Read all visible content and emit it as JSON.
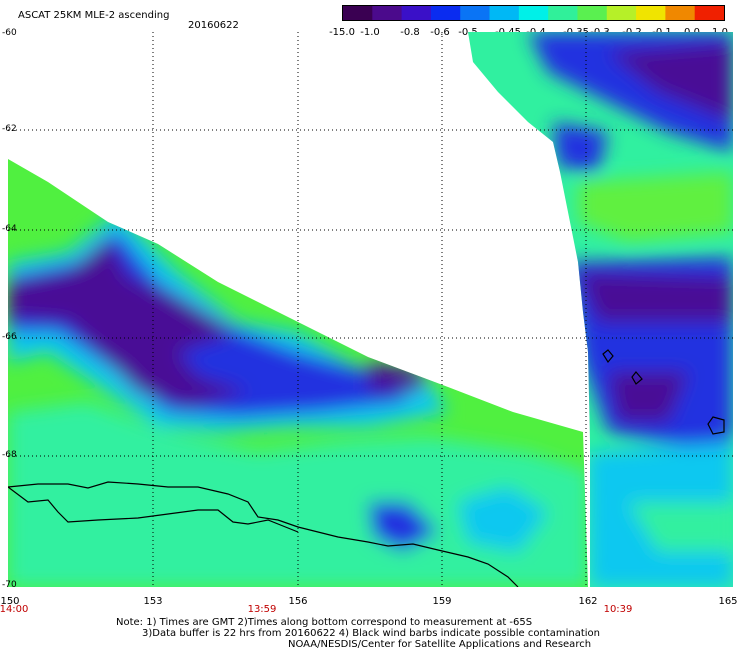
{
  "header": {
    "title": "ASCAT 25KM MLE-2 ascending",
    "date": "20160622"
  },
  "colorbar": {
    "labels": [
      "-15.0",
      "-1.0",
      "-0.8",
      "-0.6",
      "-0.5",
      "-0.45",
      "-0.4",
      "-0.35",
      "-0.3",
      "-0.2",
      "-0.1",
      "0.0",
      "1.0"
    ],
    "colors": [
      "#3a0052",
      "#4b0a8c",
      "#3a10c8",
      "#0a2cf0",
      "#0a74f5",
      "#00b8f5",
      "#00f0e8",
      "#30f09a",
      "#5af050",
      "#b6f028",
      "#f0e400",
      "#f08800",
      "#f02000"
    ]
  },
  "axes": {
    "y_labels": [
      "-60",
      "-62",
      "-64",
      "-66",
      "-68",
      "-70"
    ],
    "x_labels": [
      "150",
      "153",
      "156",
      "159",
      "162",
      "165"
    ]
  },
  "time_labels": [
    "14:00",
    "13:59",
    "10:39"
  ],
  "footer": {
    "note_line1": "Note: 1) Times are GMT 2)Times along bottom correspond to measurement at -65S",
    "note_line2": "3)Data buffer is 22 hrs from 20160622 4) Black wind barbs indicate possible contamination",
    "credit": "NOAA/NESDIS/Center for Satellite Applications and Research"
  }
}
